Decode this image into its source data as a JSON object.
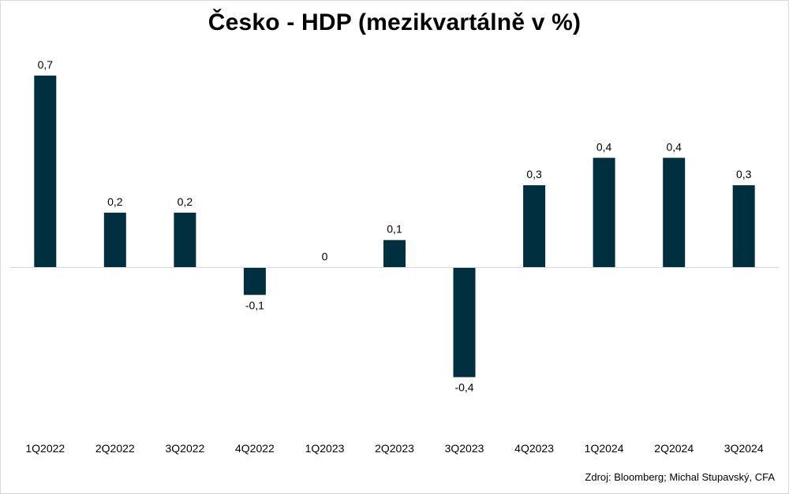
{
  "chart_data": {
    "type": "bar",
    "title": "Česko - HDP (mezikvartálně v %)",
    "categories": [
      "1Q2022",
      "2Q2022",
      "3Q2022",
      "4Q2022",
      "1Q2023",
      "2Q2023",
      "3Q2023",
      "4Q2023",
      "1Q2024",
      "2Q2024",
      "3Q2024"
    ],
    "values": [
      0.7,
      0.2,
      0.2,
      -0.1,
      0,
      0.1,
      -0.4,
      0.3,
      0.4,
      0.4,
      0.3
    ],
    "value_labels": [
      "0,7",
      "0,2",
      "0,2",
      "-0,1",
      "0",
      "0,1",
      "-0,4",
      "0,3",
      "0,4",
      "0,4",
      "0,3"
    ],
    "xlabel": "",
    "ylabel": "",
    "ylim": [
      -0.5,
      0.8
    ],
    "grid": false,
    "legend": "none",
    "bar_color": "#00303f",
    "axis_color": "#d9d9d9",
    "source": "Zdroj: Bloomberg; Michal Stupavský, CFA"
  }
}
